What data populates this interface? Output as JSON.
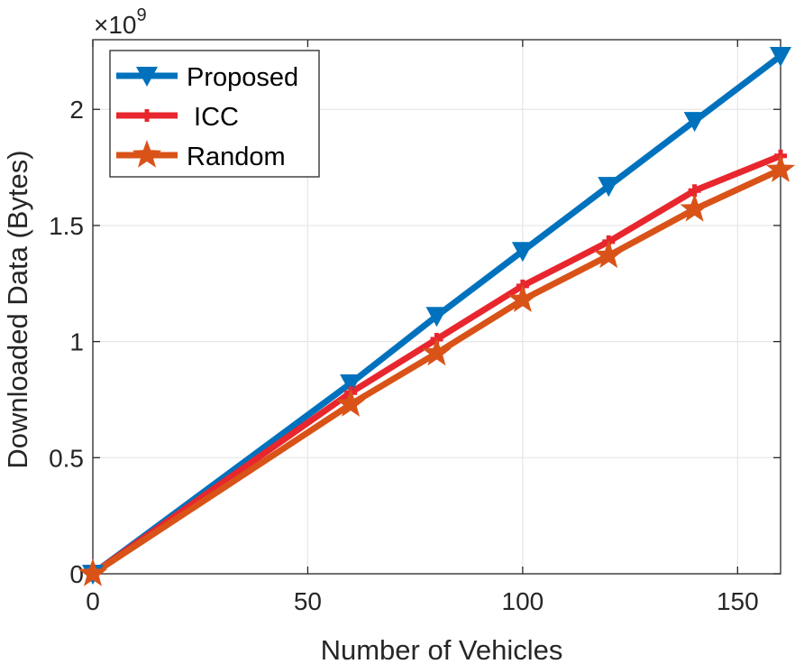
{
  "chart_data": {
    "type": "line",
    "title": "",
    "xlabel": "Number of Vehicles",
    "ylabel": "Downloaded Data (Bytes)",
    "y_multiplier_base": "×10",
    "y_multiplier_exponent": "9",
    "xlim": [
      0,
      160
    ],
    "ylim": [
      0,
      2.3
    ],
    "xticks": [
      0,
      50,
      100,
      150
    ],
    "xtick_labels": [
      "0",
      "50",
      "100",
      "150"
    ],
    "yticks": [
      0,
      0.5,
      1,
      1.5,
      2
    ],
    "ytick_labels": [
      "0",
      "0.5",
      "1",
      "1.5",
      "2"
    ],
    "grid": true,
    "legend_position": "top-left",
    "x": [
      0,
      60,
      80,
      100,
      120,
      140,
      160
    ],
    "series": [
      {
        "name": "Proposed",
        "label": "Proposed",
        "color": "#0072BD",
        "marker": "triangle-down",
        "values": [
          0,
          0.82,
          1.11,
          1.39,
          1.67,
          1.95,
          2.23
        ]
      },
      {
        "name": "ICC",
        "label": " ICC",
        "color": "#E8262D",
        "marker": "plus",
        "values": [
          0,
          0.78,
          1.01,
          1.24,
          1.43,
          1.65,
          1.8
        ]
      },
      {
        "name": "Random",
        "label": "Random",
        "color": "#D95319",
        "marker": "star",
        "values": [
          0,
          0.73,
          0.95,
          1.18,
          1.37,
          1.57,
          1.74
        ]
      }
    ]
  }
}
